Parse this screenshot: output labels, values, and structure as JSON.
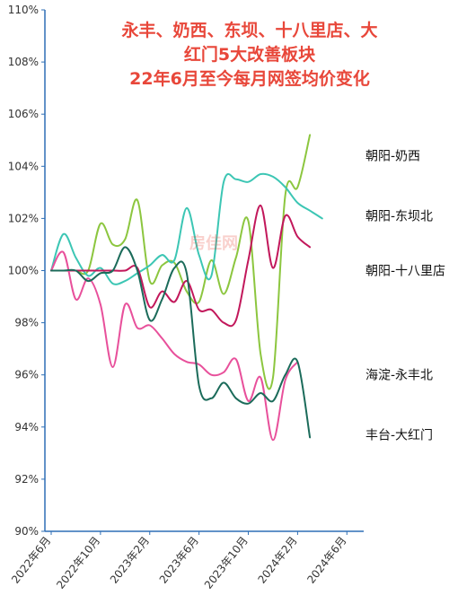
{
  "chart_data": {
    "type": "line",
    "title": [
      "永丰、奶西、东坝、十八里店、大",
      "红门5大改善板块",
      "22年6月至今每月网签均价变化"
    ],
    "watermark": "房佳网",
    "xlabel": "",
    "ylabel": "",
    "ylim": [
      90,
      110
    ],
    "xlim": [
      0,
      25
    ],
    "yticks": [
      {
        "v": 90,
        "label": "90%"
      },
      {
        "v": 92,
        "label": "92%"
      },
      {
        "v": 94,
        "label": "94%"
      },
      {
        "v": 96,
        "label": "96%"
      },
      {
        "v": 98,
        "label": "98%"
      },
      {
        "v": 100,
        "label": "100%"
      },
      {
        "v": 102,
        "label": "102%"
      },
      {
        "v": 104,
        "label": "104%"
      },
      {
        "v": 106,
        "label": "106%"
      },
      {
        "v": 108,
        "label": "108%"
      },
      {
        "v": 110,
        "label": "110%"
      }
    ],
    "xticks": [
      {
        "v": 0,
        "label": "2022年6月"
      },
      {
        "v": 4,
        "label": "2022年10月"
      },
      {
        "v": 8,
        "label": "2023年2月"
      },
      {
        "v": 12,
        "label": "2023年6月"
      },
      {
        "v": 16,
        "label": "2023年10月"
      },
      {
        "v": 20,
        "label": "2024年2月"
      },
      {
        "v": 24,
        "label": "2024年6月"
      }
    ],
    "series": [
      {
        "name": "朝阳-奶西",
        "color": "#8cc63f",
        "x": [
          0,
          1,
          2,
          3,
          4,
          5,
          6,
          7,
          8,
          9,
          10,
          11,
          12,
          13,
          14,
          15,
          16,
          17,
          18,
          19,
          20,
          21,
          22,
          23,
          24
        ],
        "y": [
          100,
          100,
          100,
          100,
          101.8,
          101,
          101.2,
          102.7,
          99.6,
          100.2,
          100.3,
          99.2,
          98.8,
          100.4,
          99.1,
          100.5,
          101.9,
          96.8,
          95.9,
          102.9,
          103.2,
          105.2,
          null,
          null,
          null
        ],
        "label_y": 104.4
      },
      {
        "name": "朝阳-东坝北",
        "color": "#3cc6b4",
        "x": [
          0,
          1,
          2,
          3,
          4,
          5,
          6,
          7,
          8,
          9,
          10,
          11,
          12,
          13,
          14,
          15,
          16,
          17,
          18,
          19,
          20,
          21,
          22,
          23,
          24
        ],
        "y": [
          100,
          101.4,
          100.5,
          99.8,
          100.1,
          99.5,
          99.6,
          99.9,
          100.2,
          100.6,
          100.4,
          102.4,
          100.6,
          99.8,
          103.4,
          103.5,
          103.4,
          103.7,
          103.6,
          103.2,
          102.6,
          102.3,
          102.0,
          null,
          null
        ],
        "label_y": 102.1
      },
      {
        "name": "朝阳-十八里店",
        "color": "#c2185b",
        "x": [
          0,
          1,
          2,
          3,
          4,
          5,
          6,
          7,
          8,
          9,
          10,
          11,
          12,
          13,
          14,
          15,
          16,
          17,
          18,
          19,
          20,
          21,
          22,
          23,
          24
        ],
        "y": [
          100,
          100,
          100,
          100,
          100,
          100,
          100,
          100.1,
          98.6,
          99.2,
          98.8,
          99.6,
          98.5,
          98.5,
          98.0,
          98.1,
          100.4,
          102.5,
          100.1,
          102.1,
          101.3,
          100.9,
          null,
          null,
          null
        ],
        "label_y": 100.0
      },
      {
        "name": "海淀-永丰北",
        "color": "#e8509b",
        "x": [
          0,
          1,
          2,
          3,
          4,
          5,
          6,
          7,
          8,
          9,
          10,
          11,
          12,
          13,
          14,
          15,
          16,
          17,
          18,
          19,
          20,
          21,
          22,
          23,
          24
        ],
        "y": [
          100,
          100.7,
          98.9,
          99.7,
          98.7,
          96.3,
          98.7,
          97.8,
          97.9,
          97.4,
          96.8,
          96.5,
          96.4,
          96.0,
          96.1,
          96.6,
          95.0,
          95.9,
          93.5,
          95.8,
          96.5,
          null,
          null,
          null,
          null
        ],
        "label_y": 96.0
      },
      {
        "name": "丰台-大红门",
        "color": "#1b6b5a",
        "x": [
          0,
          1,
          2,
          3,
          4,
          5,
          6,
          7,
          8,
          9,
          10,
          11,
          12,
          13,
          14,
          15,
          16,
          17,
          18,
          19,
          20,
          21,
          22,
          23,
          24
        ],
        "y": [
          100,
          100,
          100,
          99.6,
          99.9,
          100,
          100.9,
          100.0,
          98.1,
          98.9,
          100.1,
          99.9,
          95.6,
          95.1,
          95.7,
          95.1,
          94.9,
          95.3,
          95.0,
          96.0,
          96.5,
          93.6,
          null,
          null,
          null
        ],
        "label_y": 93.7
      }
    ]
  }
}
